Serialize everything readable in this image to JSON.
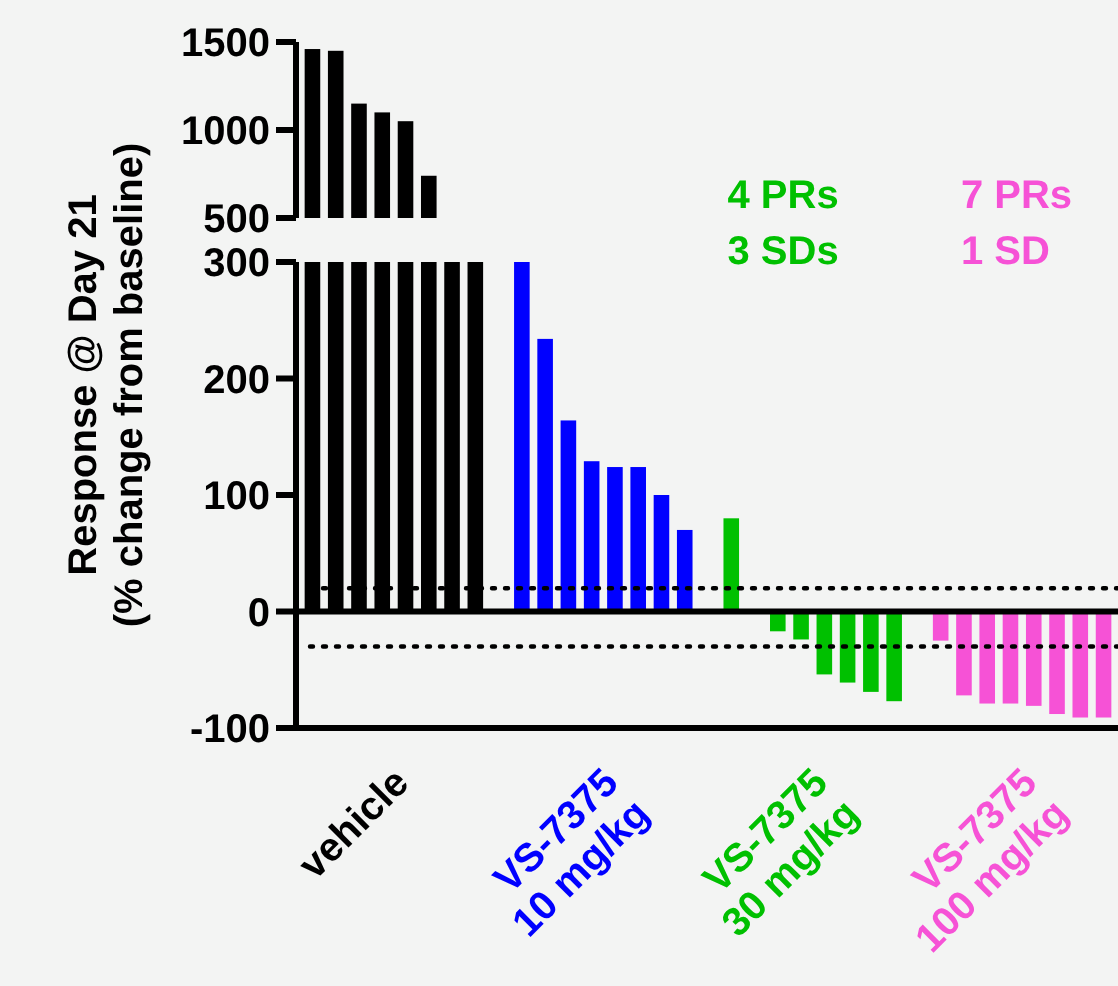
{
  "chart_data": [
    {
      "type": "bar",
      "categories": [
        null,
        null,
        null,
        null,
        null,
        null
      ],
      "values": [
        1460,
        1450,
        1150,
        1100,
        1050,
        740
      ],
      "color": "#000000",
      "ylim": [
        500,
        1500
      ],
      "yticks": [
        500,
        1000,
        1500
      ],
      "tick_labels": "y"
    },
    {
      "type": "bar",
      "ylabel": "Response @ Day 21\n(% change from baseline)",
      "categories": [
        null,
        null,
        null,
        null,
        null,
        null,
        null,
        null,
        null,
        null,
        null,
        null,
        null,
        null,
        null,
        null,
        null,
        null,
        null,
        null,
        null,
        null,
        null,
        null,
        null,
        null,
        null,
        null,
        null,
        null,
        null,
        null,
        null,
        null,
        null
      ],
      "series": [
        {
          "name": "vehicle",
          "color": "#000000",
          "values": [
            300,
            300,
            300,
            300,
            300,
            300,
            300,
            300,
            null,
            null,
            null,
            null,
            null,
            null,
            null,
            null,
            null,
            null,
            null,
            null,
            null,
            null,
            null,
            null,
            null,
            null,
            null,
            null,
            null,
            null,
            null,
            null,
            null,
            null,
            null
          ]
        },
        {
          "name": "VS-7375\n10 mg/kg",
          "color": "#0000ff",
          "values": [
            null,
            null,
            null,
            null,
            null,
            null,
            null,
            null,
            null,
            300,
            234,
            164,
            129,
            124,
            124,
            100,
            70,
            null,
            null,
            null,
            null,
            null,
            null,
            null,
            null,
            null,
            null,
            null,
            null,
            null,
            null,
            null,
            null,
            null,
            null
          ]
        },
        {
          "name": "VS-7375\n30 mg/kg",
          "color": "#00c000",
          "values": [
            null,
            null,
            null,
            null,
            null,
            null,
            null,
            null,
            null,
            null,
            null,
            null,
            null,
            null,
            null,
            null,
            null,
            null,
            80,
            -2,
            -17,
            -24,
            -54,
            -61,
            -69,
            -77,
            null,
            null,
            null,
            null,
            null,
            null,
            null,
            null,
            null
          ]
        },
        {
          "name": "VS-7375\n100 mg/kg",
          "color": "#f652d6",
          "values": [
            null,
            null,
            null,
            null,
            null,
            null,
            null,
            null,
            null,
            null,
            null,
            null,
            null,
            null,
            null,
            null,
            null,
            null,
            null,
            null,
            null,
            null,
            null,
            null,
            null,
            null,
            null,
            -25,
            -72,
            -79,
            -79,
            -81,
            -88,
            -91,
            -91
          ]
        }
      ],
      "ylim": [
        -100,
        300
      ],
      "yticks": [
        -100,
        0,
        100,
        200,
        300
      ],
      "ref_lines": [
        {
          "axis": "y",
          "value": 20,
          "line_style": "dotted"
        },
        {
          "axis": "y",
          "value": -30,
          "line_style": "dotted"
        }
      ],
      "annotations": [
        "4 PRs",
        "3 SDs",
        "7 PRs",
        "1 SD"
      ]
    }
  ]
}
